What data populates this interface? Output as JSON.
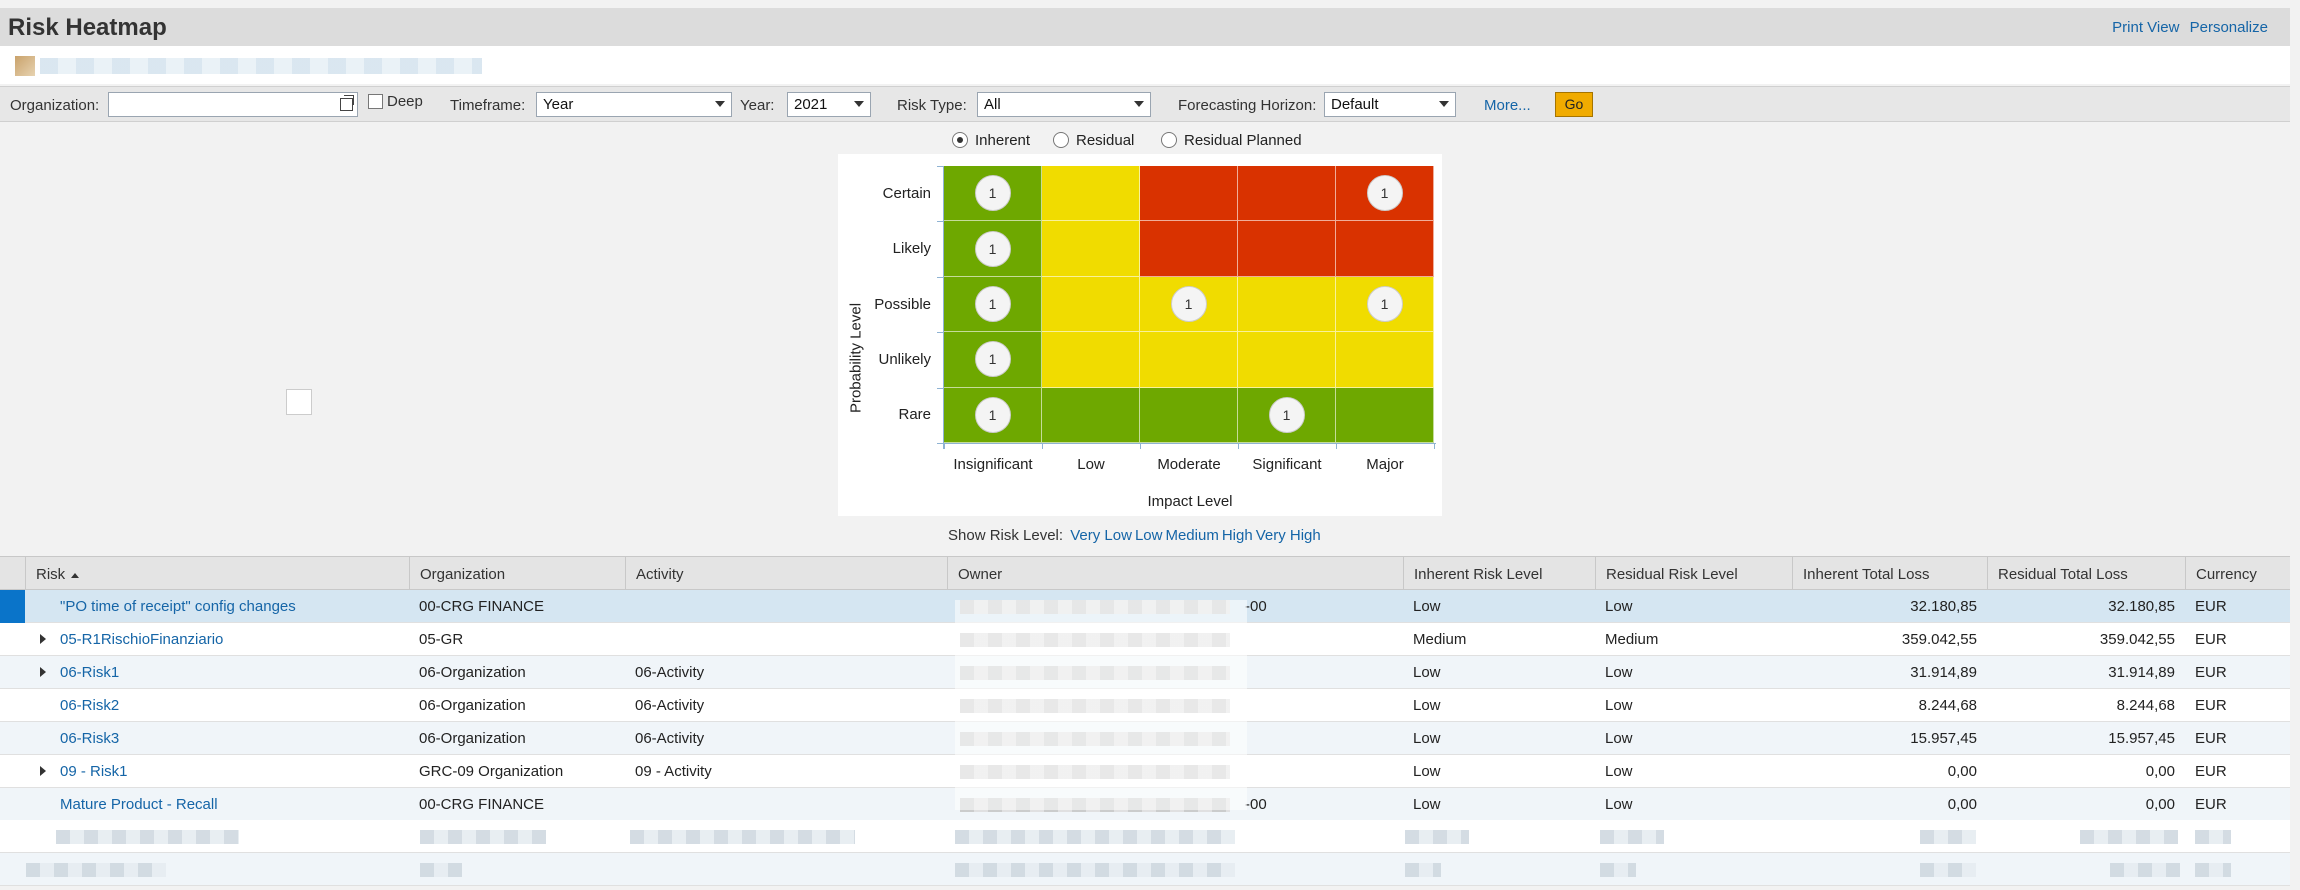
{
  "header": {
    "title": "Risk Heatmap",
    "actions": [
      "Print View",
      "Personalize"
    ]
  },
  "filters": {
    "organization": {
      "label": "Organization:",
      "value": ""
    },
    "deep": {
      "label": "Deep",
      "checked": false
    },
    "timeframe": {
      "label": "Timeframe:",
      "value": "Year"
    },
    "year": {
      "label": "Year:",
      "value": "2021"
    },
    "risk_type": {
      "label": "Risk Type:",
      "value": "All"
    },
    "forecasting_horizon": {
      "label": "Forecasting Horizon:",
      "value": "Default"
    },
    "more_label": "More...",
    "go_label": "Go"
  },
  "view_options": [
    {
      "label": "Inherent",
      "selected": true
    },
    {
      "label": "Residual",
      "selected": false
    },
    {
      "label": "Residual Planned",
      "selected": false
    }
  ],
  "heatmap": {
    "y_title": "Probability Level",
    "x_title": "Impact Level",
    "y_levels": [
      "Certain",
      "Likely",
      "Possible",
      "Unlikely",
      "Rare"
    ],
    "x_levels": [
      "Insignificant",
      "Low",
      "Moderate",
      "Significant",
      "Major"
    ],
    "colors": {
      "green": "#6ea800",
      "yellow": "#f0dc00",
      "red": "#d93200"
    },
    "cells": [
      [
        "green",
        "yellow",
        "red",
        "red",
        "red"
      ],
      [
        "green",
        "yellow",
        "red",
        "red",
        "red"
      ],
      [
        "green",
        "yellow",
        "yellow",
        "yellow",
        "yellow"
      ],
      [
        "green",
        "yellow",
        "yellow",
        "yellow",
        "yellow"
      ],
      [
        "green",
        "green",
        "green",
        "green",
        "green"
      ]
    ],
    "counts": [
      [
        "1",
        "",
        "",
        "",
        "1"
      ],
      [
        "1",
        "",
        "",
        "",
        ""
      ],
      [
        "1",
        "",
        "1",
        "",
        "1"
      ],
      [
        "1",
        "",
        "",
        "",
        ""
      ],
      [
        "1",
        "",
        "",
        "1",
        ""
      ]
    ]
  },
  "show_risk_level": {
    "label": "Show Risk Level:",
    "levels": [
      "Very Low",
      "Low",
      "Medium",
      "High",
      "Very High"
    ]
  },
  "table": {
    "columns": [
      "Risk",
      "Organization",
      "Activity",
      "Owner",
      "Inherent Risk Level",
      "Residual Risk Level",
      "Inherent Total Loss",
      "Residual Total Loss",
      "Currency"
    ],
    "rows": [
      {
        "risk": "\"PO time of receipt\" config changes",
        "organization": "00-CRG FINANCE",
        "activity": "",
        "owner": "-00",
        "inherent": "Low",
        "residual": "Low",
        "inherent_loss": "32.180,85",
        "residual_loss": "32.180,85",
        "currency": "EUR",
        "expandable": false
      },
      {
        "risk": "05-R1RischioFinanziario",
        "organization": "05-GR",
        "activity": "",
        "owner": "",
        "inherent": "Medium",
        "residual": "Medium",
        "inherent_loss": "359.042,55",
        "residual_loss": "359.042,55",
        "currency": "EUR",
        "expandable": true
      },
      {
        "risk": "06-Risk1",
        "organization": "06-Organization",
        "activity": "06-Activity",
        "owner": "",
        "inherent": "Low",
        "residual": "Low",
        "inherent_loss": "31.914,89",
        "residual_loss": "31.914,89",
        "currency": "EUR",
        "expandable": true
      },
      {
        "risk": "06-Risk2",
        "organization": "06-Organization",
        "activity": "06-Activity",
        "owner": "",
        "inherent": "Low",
        "residual": "Low",
        "inherent_loss": "8.244,68",
        "residual_loss": "8.244,68",
        "currency": "EUR",
        "expandable": false
      },
      {
        "risk": "06-Risk3",
        "organization": "06-Organization",
        "activity": "06-Activity",
        "owner": "",
        "inherent": "Low",
        "residual": "Low",
        "inherent_loss": "15.957,45",
        "residual_loss": "15.957,45",
        "currency": "EUR",
        "expandable": false
      },
      {
        "risk": "09 - Risk1",
        "organization": "GRC-09 Organization",
        "activity": "09 - Activity",
        "owner": "",
        "inherent": "Low",
        "residual": "Low",
        "inherent_loss": "0,00",
        "residual_loss": "0,00",
        "currency": "EUR",
        "expandable": true
      },
      {
        "risk": "Mature Product - Recall",
        "organization": "00-CRG FINANCE",
        "activity": "",
        "owner": "-00",
        "inherent": "Low",
        "residual": "Low",
        "inherent_loss": "0,00",
        "residual_loss": "0,00",
        "currency": "EUR",
        "expandable": false
      }
    ]
  }
}
